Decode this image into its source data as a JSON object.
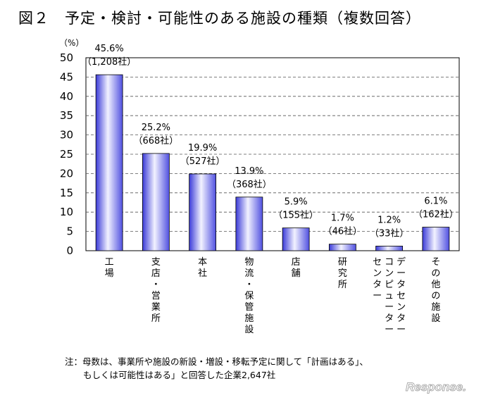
{
  "title": "図２　予定・検討・可能性のある施設の種類（複数回答）",
  "chart_data": {
    "type": "bar",
    "title": "図２　予定・検討・可能性のある施設の種類（複数回答）",
    "y_unit_label": "（%）",
    "ylim": [
      0,
      50
    ],
    "yticks": [
      0,
      5,
      10,
      15,
      20,
      25,
      30,
      35,
      40,
      45,
      50
    ],
    "categories": [
      "工場",
      "支店・営業所",
      "本社",
      "物流・保管施設",
      "店舗",
      "研究所",
      "データセンター・コンピューターセンター",
      "その他の施設"
    ],
    "category_label_columns": [
      [
        "工場"
      ],
      [
        "支店・営業所"
      ],
      [
        "本社"
      ],
      [
        "物流・保管施設"
      ],
      [
        "店舗"
      ],
      [
        "研究所"
      ],
      [
        "データセンター",
        "コンピューター",
        "センター"
      ],
      [
        "その他の施設"
      ]
    ],
    "values": [
      45.6,
      25.2,
      19.9,
      13.9,
      5.9,
      1.7,
      1.2,
      6.1
    ],
    "data_labels": [
      "45.6%",
      "25.2%",
      "19.9%",
      "13.9%",
      "5.9%",
      "1.7%",
      "1.2%",
      "6.1%"
    ],
    "count_labels": [
      "（1,208社）",
      "（668社）",
      "（527社）",
      "（368社）",
      "（155社）",
      "（46社）",
      "（33社）",
      "（162社）"
    ],
    "grid": true,
    "bar_color": "#6060ee"
  },
  "notes": {
    "line1": "注：母数は、事業所や施設の新設・増設・移転予定に関して「計画はある」、",
    "line2": "もしくは可能性はある」と回答した企業2,647社"
  },
  "logo": {
    "text": "Response."
  }
}
